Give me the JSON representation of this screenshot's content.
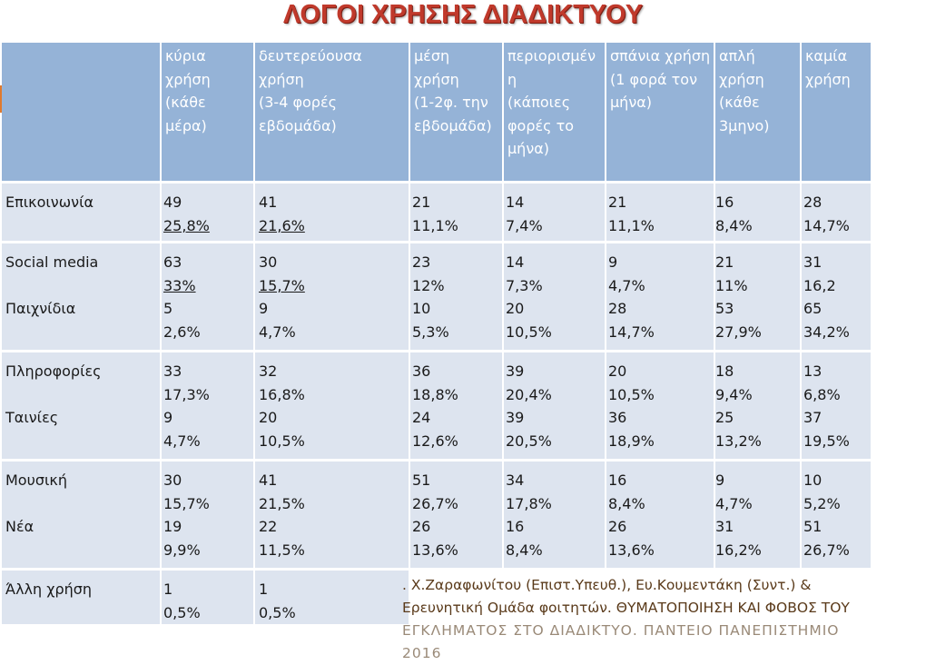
{
  "title": "ΛΟΓΟΙ ΧΡΗΣΗΣ ΔΙΑΔΙΚΤΥΟΥ",
  "columns": [
    "",
    "κύρια\nχρήση\n(κάθε\nμέρα)",
    "δευτερεύουσα\nχρήση\n(3-4 φορές\nεβδομάδα)",
    "μέση\nχρήση\n(1-2φ. την\nεβδομάδα)",
    "περιορισμέν\nη\n(κάποιες\nφορές το\nμήνα)",
    "σπάνια χρήση\n(1 φορά τον\nμήνα)",
    " απλή\nχρήση\n(κάθε\n3μηνο)",
    "καμία\nχρήση"
  ],
  "rows": [
    {
      "labels": [
        "Επικοινωνία"
      ],
      "cells": [
        [
          "49",
          "25,8%"
        ],
        [
          "41",
          "21,6%"
        ],
        [
          "21",
          "11,1%"
        ],
        [
          "14",
          "7,4%"
        ],
        [
          "21",
          "11,1%"
        ],
        [
          "16",
          "8,4%"
        ],
        [
          "28",
          "14,7%"
        ]
      ]
    },
    {
      "labels": [
        "Social media",
        "Παιχνίδια"
      ],
      "cells": [
        [
          "63",
          "33%",
          "5",
          "2,6%"
        ],
        [
          "30",
          "15,7%",
          "9",
          "4,7%"
        ],
        [
          "23",
          "12%",
          "10",
          "5,3%"
        ],
        [
          "14",
          "7,3%",
          "20",
          "10,5%"
        ],
        [
          "9",
          "4,7%",
          "28",
          "14,7%"
        ],
        [
          "21",
          "11%",
          "53",
          "27,9%"
        ],
        [
          "31",
          "16,2",
          "65",
          "34,2%"
        ]
      ]
    },
    {
      "labels": [
        "Πληροφορίες",
        "Ταινίες"
      ],
      "cells": [
        [
          "33",
          "17,3%",
          "9",
          "4,7%"
        ],
        [
          "32",
          "16,8%",
          "20",
          "10,5%"
        ],
        [
          "36",
          "18,8%",
          "24",
          "12,6%"
        ],
        [
          "39",
          "20,4%",
          "39",
          "20,5%"
        ],
        [
          "20",
          "10,5%",
          "36",
          "18,9%"
        ],
        [
          "18",
          "9,4%",
          "25",
          "13,2%"
        ],
        [
          "13",
          "6,8%",
          "37",
          "19,5%"
        ]
      ]
    },
    {
      "labels": [
        "Μουσική",
        "Νέα"
      ],
      "cells": [
        [
          "30",
          "15,7%",
          "19",
          "9,9%"
        ],
        [
          "41",
          "21,5%",
          "22",
          "11,5%"
        ],
        [
          "51",
          "26,7%",
          "26",
          "13,6%"
        ],
        [
          "34",
          "17,8%",
          "16",
          "8,4%"
        ],
        [
          "16",
          "8,4%",
          "26",
          "13,6%"
        ],
        [
          "9",
          "4,7%",
          "31",
          "16,2%"
        ],
        [
          "10",
          "5,2%",
          "51",
          "26,7%"
        ]
      ]
    },
    {
      "labels": [
        "Άλλη χρήση"
      ],
      "cells": [
        [
          "1",
          "0,5%"
        ],
        [
          "1",
          "0,5%"
        ]
      ]
    }
  ],
  "caption": {
    "line1": ".    Χ.Ζαραφωνίτου (Επιστ.Υπευθ.), Ευ.Κουμεντάκη (Συντ.) &",
    "line2": "Ερευνητική Ομάδα φοιτητών. ΘΥΜΑΤΟΠΟΙΗΣΗ ΚΑΙ ΦΟΒΟΣ ΤΟΥ",
    "line3": "ΕΓΚΛΗΜΑΤΟΣ ΣΤΟ ΔΙΑΔΙΚΤΥΟ. ΠΑΝΤΕΙΟ ΠΑΝΕΠΙΣΤΗΜΙΟ 2016"
  },
  "colors": {
    "header_bg": "#95b3d7",
    "band": "#dde4ef",
    "title": "#c0392b"
  }
}
